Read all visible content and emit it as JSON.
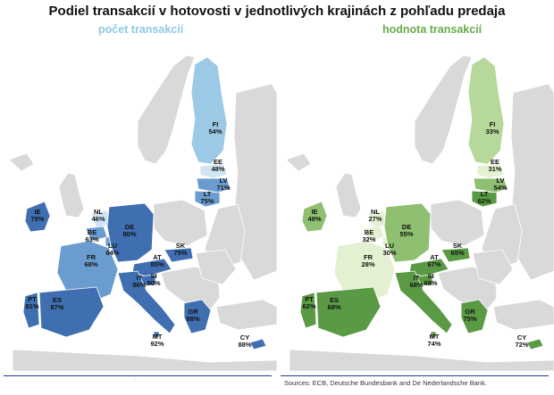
{
  "title": "Podiel transakcií v hotovosti v jednotlivých krajinách z pohľadu predaja",
  "source": "Sources: ECB, Deutsche Bundesbank and De Nederlandsche Bank.",
  "edge_text": "'. .",
  "colors": {
    "land": "#d9d9d9",
    "sea": "#ffffff",
    "border": "#ffffff"
  },
  "maps": [
    {
      "subtitle": "počet transakcií",
      "subtitle_color": "#8ec8e6",
      "colors": {
        "dark": "#3f6fb0",
        "mid": "#6b9cd0",
        "light": "#9cc9e6",
        "pale": "#cfe5f4"
      },
      "countries": [
        {
          "code": "FI",
          "value": "54%",
          "shade": "light"
        },
        {
          "code": "EE",
          "value": "48%",
          "shade": "pale"
        },
        {
          "code": "LV",
          "value": "71%",
          "shade": "mid"
        },
        {
          "code": "LT",
          "value": "75%",
          "shade": "mid"
        },
        {
          "code": "IE",
          "value": "79%",
          "shade": "dark"
        },
        {
          "code": "NL",
          "value": "46%",
          "shade": "pale"
        },
        {
          "code": "BE",
          "value": "63%",
          "shade": "mid"
        },
        {
          "code": "LU",
          "value": "64%",
          "shade": "mid"
        },
        {
          "code": "DE",
          "value": "80%",
          "shade": "dark"
        },
        {
          "code": "FR",
          "value": "68%",
          "shade": "mid"
        },
        {
          "code": "AT",
          "value": "85%",
          "shade": "dark"
        },
        {
          "code": "SK",
          "value": "75%",
          "shade": "dark"
        },
        {
          "code": "SI",
          "value": "80%",
          "shade": "dark"
        },
        {
          "code": "IT",
          "value": "86%",
          "shade": "dark"
        },
        {
          "code": "PT",
          "value": "81%",
          "shade": "dark"
        },
        {
          "code": "ES",
          "value": "87%",
          "shade": "dark"
        },
        {
          "code": "GR",
          "value": "88%",
          "shade": "dark"
        },
        {
          "code": "MT",
          "value": "92%",
          "shade": "dark"
        },
        {
          "code": "CY",
          "value": "88%",
          "shade": "dark"
        }
      ]
    },
    {
      "subtitle": "hodnota transakcií",
      "subtitle_color": "#6aaa4a",
      "colors": {
        "dark": "#5a9a44",
        "mid": "#8fbf70",
        "light": "#b6d89a",
        "pale": "#e4f0d2"
      },
      "countries": [
        {
          "code": "FI",
          "value": "33%",
          "shade": "light"
        },
        {
          "code": "EE",
          "value": "31%",
          "shade": "pale"
        },
        {
          "code": "LV",
          "value": "54%",
          "shade": "mid"
        },
        {
          "code": "LT",
          "value": "62%",
          "shade": "dark"
        },
        {
          "code": "IE",
          "value": "49%",
          "shade": "mid"
        },
        {
          "code": "NL",
          "value": "27%",
          "shade": "pale"
        },
        {
          "code": "BE",
          "value": "32%",
          "shade": "pale"
        },
        {
          "code": "LU",
          "value": "30%",
          "shade": "pale"
        },
        {
          "code": "DE",
          "value": "55%",
          "shade": "mid"
        },
        {
          "code": "FR",
          "value": "28%",
          "shade": "pale"
        },
        {
          "code": "AT",
          "value": "67%",
          "shade": "dark"
        },
        {
          "code": "SK",
          "value": "65%",
          "shade": "dark"
        },
        {
          "code": "SI",
          "value": "68%",
          "shade": "dark"
        },
        {
          "code": "IT",
          "value": "68%",
          "shade": "dark"
        },
        {
          "code": "PT",
          "value": "62%",
          "shade": "dark"
        },
        {
          "code": "ES",
          "value": "68%",
          "shade": "dark"
        },
        {
          "code": "GR",
          "value": "75%",
          "shade": "dark"
        },
        {
          "code": "MT",
          "value": "74%",
          "shade": "dark"
        },
        {
          "code": "CY",
          "value": "72%",
          "shade": "dark"
        }
      ]
    }
  ]
}
